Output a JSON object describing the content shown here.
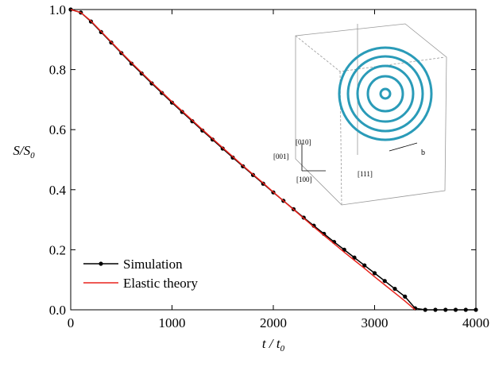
{
  "chart_data": {
    "type": "line",
    "xlabel": {
      "main": "t / t",
      "sub": "0"
    },
    "ylabel": {
      "main": "S/S",
      "sub": "0"
    },
    "x": [
      0,
      100,
      200,
      300,
      400,
      500,
      600,
      700,
      800,
      900,
      1000,
      1100,
      1200,
      1300,
      1400,
      1500,
      1600,
      1700,
      1800,
      1900,
      2000,
      2100,
      2200,
      2300,
      2400,
      2500,
      2600,
      2700,
      2800,
      2900,
      3000,
      3100,
      3200,
      3300,
      3400,
      3500,
      3600,
      3700,
      3800,
      3900,
      4000
    ],
    "series": [
      {
        "name": "Simulation",
        "color": "#000000",
        "markers": true,
        "values": [
          1.0,
          0.99,
          0.96,
          0.925,
          0.89,
          0.855,
          0.82,
          0.787,
          0.754,
          0.722,
          0.69,
          0.659,
          0.628,
          0.597,
          0.567,
          0.537,
          0.507,
          0.478,
          0.449,
          0.42,
          0.391,
          0.363,
          0.335,
          0.307,
          0.28,
          0.253,
          0.226,
          0.2,
          0.174,
          0.148,
          0.122,
          0.096,
          0.07,
          0.044,
          0.005,
          0,
          0,
          0,
          0,
          0,
          0
        ]
      },
      {
        "name": "Elastic theory",
        "color": "#e8221b",
        "markers": false,
        "values": [
          1.0,
          0.99,
          0.962,
          0.927,
          0.892,
          0.857,
          0.823,
          0.79,
          0.757,
          0.725,
          0.693,
          0.662,
          0.631,
          0.6,
          0.57,
          0.54,
          0.51,
          0.48,
          0.451,
          0.422,
          0.392,
          0.363,
          0.334,
          0.305,
          0.276,
          0.248,
          0.22,
          0.192,
          0.165,
          0.138,
          0.11,
          0.083,
          0.056,
          0.029,
          0.0,
          null,
          null,
          null,
          null,
          null,
          null
        ]
      }
    ],
    "xlim": [
      0,
      4000
    ],
    "xticks": [
      0,
      1000,
      2000,
      3000,
      4000
    ],
    "ylim": [
      0,
      1.0
    ],
    "yticks": [
      {
        "value": 0,
        "label": "0.0"
      },
      0.2,
      0.4,
      0.6,
      0.8,
      {
        "value": 1.0,
        "label": "1.0"
      }
    ],
    "legend": "lower left",
    "annotations": [
      "[010]",
      "[001]",
      "[100]",
      "[111]",
      "b"
    ]
  }
}
